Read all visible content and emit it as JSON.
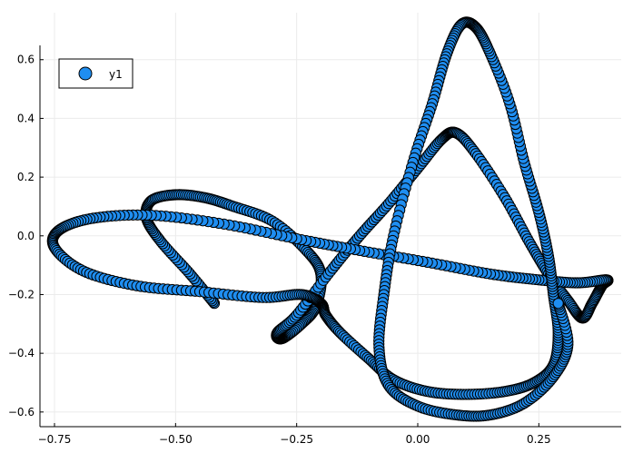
{
  "chart_data": {
    "type": "scatter",
    "title": "",
    "xlabel": "",
    "ylabel": "",
    "xlim": [
      -0.78,
      0.42
    ],
    "ylim": [
      -0.65,
      0.76
    ],
    "xticks": [
      -0.75,
      -0.5,
      -0.25,
      0.0,
      0.25
    ],
    "xtick_labels": [
      "−0.75",
      "−0.50",
      "−0.25",
      "0.00",
      "0.25"
    ],
    "yticks": [
      -0.6,
      -0.4,
      -0.2,
      0.0,
      0.2,
      0.4,
      0.6
    ],
    "ytick_labels": [
      "−0.6",
      "−0.4",
      "−0.2",
      "0.0",
      "0.2",
      "0.4",
      "0.6"
    ],
    "grid": true,
    "legend": {
      "position": "top-left",
      "entries": [
        "y1"
      ]
    },
    "marker_color": "#1f8ef1",
    "marker_stroke": "#000000",
    "series": [
      {
        "name": "y1",
        "path_keypoints": [
          [
            -0.42,
            -0.23
          ],
          [
            -0.47,
            -0.13
          ],
          [
            -0.53,
            -0.02
          ],
          [
            -0.56,
            0.06
          ],
          [
            -0.55,
            0.12
          ],
          [
            -0.5,
            0.14
          ],
          [
            -0.44,
            0.13
          ],
          [
            -0.38,
            0.1
          ],
          [
            -0.3,
            0.05
          ],
          [
            -0.23,
            -0.05
          ],
          [
            -0.2,
            -0.13
          ],
          [
            -0.21,
            -0.24
          ],
          [
            -0.24,
            -0.3
          ],
          [
            -0.28,
            -0.35
          ],
          [
            -0.29,
            -0.33
          ],
          [
            -0.25,
            -0.27
          ],
          [
            -0.18,
            -0.12
          ],
          [
            -0.12,
            0.0
          ],
          [
            -0.06,
            0.11
          ],
          [
            0.0,
            0.23
          ],
          [
            0.05,
            0.33
          ],
          [
            0.08,
            0.35
          ],
          [
            0.12,
            0.28
          ],
          [
            0.18,
            0.13
          ],
          [
            0.23,
            -0.02
          ],
          [
            0.27,
            -0.13
          ],
          [
            0.31,
            -0.22
          ],
          [
            0.34,
            -0.28
          ],
          [
            0.36,
            -0.23
          ],
          [
            0.38,
            -0.17
          ],
          [
            0.39,
            -0.15
          ],
          [
            0.33,
            -0.16
          ],
          [
            0.25,
            -0.15
          ],
          [
            0.15,
            -0.13
          ],
          [
            0.02,
            -0.09
          ],
          [
            -0.12,
            -0.05
          ],
          [
            -0.25,
            -0.01
          ],
          [
            -0.4,
            0.04
          ],
          [
            -0.55,
            0.07
          ],
          [
            -0.67,
            0.06
          ],
          [
            -0.74,
            0.02
          ],
          [
            -0.75,
            -0.04
          ],
          [
            -0.69,
            -0.12
          ],
          [
            -0.58,
            -0.17
          ],
          [
            -0.45,
            -0.19
          ],
          [
            -0.32,
            -0.21
          ],
          [
            -0.24,
            -0.2
          ],
          [
            -0.2,
            -0.23
          ],
          [
            -0.19,
            -0.27
          ],
          [
            -0.16,
            -0.33
          ],
          [
            -0.1,
            -0.42
          ],
          [
            -0.05,
            -0.49
          ],
          [
            0.02,
            -0.53
          ],
          [
            0.1,
            -0.54
          ],
          [
            0.18,
            -0.53
          ],
          [
            0.24,
            -0.5
          ],
          [
            0.28,
            -0.44
          ],
          [
            0.29,
            -0.33
          ],
          [
            0.28,
            -0.2
          ],
          [
            0.27,
            -0.07
          ],
          [
            0.25,
            0.08
          ],
          [
            0.22,
            0.25
          ],
          [
            0.19,
            0.45
          ],
          [
            0.15,
            0.62
          ],
          [
            0.12,
            0.71
          ],
          [
            0.09,
            0.72
          ],
          [
            0.06,
            0.62
          ],
          [
            0.03,
            0.45
          ],
          [
            -0.01,
            0.25
          ],
          [
            -0.05,
            0.0
          ],
          [
            -0.07,
            -0.2
          ],
          [
            -0.08,
            -0.38
          ],
          [
            -0.06,
            -0.51
          ],
          [
            0.0,
            -0.58
          ],
          [
            0.08,
            -0.61
          ],
          [
            0.15,
            -0.61
          ],
          [
            0.22,
            -0.57
          ],
          [
            0.28,
            -0.48
          ],
          [
            0.31,
            -0.37
          ],
          [
            0.29,
            -0.23
          ]
        ],
        "highlight_point": [
          0.29,
          -0.23
        ]
      }
    ]
  }
}
